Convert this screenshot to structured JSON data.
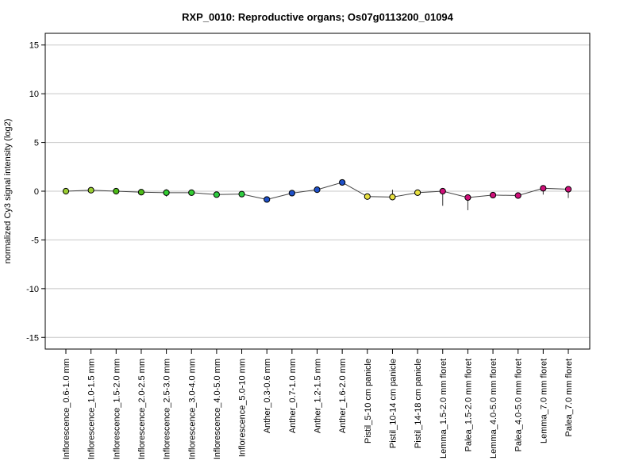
{
  "chart_data": {
    "type": "line",
    "title": "RXP_0010: Reproductive organs; Os07g0113200_01094",
    "xlabel": "",
    "ylabel": "normalized Cy3 signal intensity (log2)",
    "ylim": [
      -16.2,
      16.2
    ],
    "yticks": [
      15,
      10,
      5,
      0,
      -5,
      -10,
      -15
    ],
    "grid": true,
    "categories": [
      "Inflorescence_0.6-1.0 mm",
      "Inflorescence_1.0-1.5 mm",
      "Inflorescence_1.5-2.0 mm",
      "Inflorescence_2.0-2.5 mm",
      "Inflorescence_2.5-3.0 mm",
      "Inflorescence_3.0-4.0 mm",
      "Inflorescence_4.0-5.0 mm",
      "Inflorescence_5.0-10 mm",
      "Anther_0.3-0.6 mm",
      "Anther_0.7-1.0 mm",
      "Anther_1.2-1.5 mm",
      "Anther_1.6-2.0 mm",
      "Pistil_5-10 cm panicle",
      "Pistil_10-14 cm panicle",
      "Pistil_14-18 cm panicle",
      "Lemma_1.5-2.0 mm floret",
      "Palea_1.5-2.0 mm floret",
      "Lemma_4.0-5.0 mm floret",
      "Palea_4.0-5.0 mm floret",
      "Lemma_7.0 mm floret",
      "Palea_7.0 mm floret"
    ],
    "values": [
      0.0,
      0.1,
      0.0,
      -0.1,
      -0.15,
      -0.15,
      -0.35,
      -0.3,
      -0.85,
      -0.2,
      0.15,
      0.9,
      -0.55,
      -0.6,
      -0.15,
      0.0,
      -0.65,
      -0.4,
      -0.45,
      0.3,
      0.2
    ],
    "error_low": [
      -0.1,
      0.0,
      -0.1,
      -0.25,
      -0.55,
      -0.25,
      -0.45,
      -0.45,
      -0.95,
      -0.3,
      0.05,
      0.75,
      -0.65,
      -0.75,
      -0.35,
      -1.5,
      -1.95,
      -0.5,
      -0.5,
      -0.35,
      -0.7
    ],
    "error_high": [
      0.1,
      0.2,
      0.1,
      0.0,
      0.2,
      -0.05,
      -0.25,
      -0.15,
      -0.75,
      -0.1,
      0.25,
      1.05,
      -0.45,
      0.15,
      0.1,
      0.1,
      -0.35,
      -0.3,
      -0.4,
      0.45,
      0.3
    ],
    "point_colors": [
      "#9acd32",
      "#9acd32",
      "#4cbb17",
      "#4cbb17",
      "#32cd32",
      "#32cd32",
      "#2ecc40",
      "#2ecc40",
      "#1e50c8",
      "#1e50c8",
      "#1e50c8",
      "#1e50c8",
      "#e8e040",
      "#e8e040",
      "#e8e040",
      "#d0107a",
      "#d0107a",
      "#d0107a",
      "#d0107a",
      "#d0107a",
      "#d0107a"
    ]
  }
}
